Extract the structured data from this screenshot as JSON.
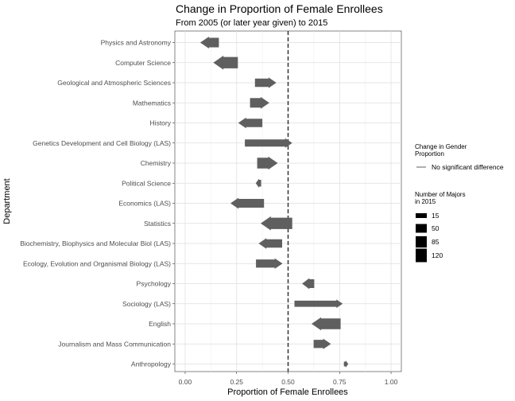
{
  "chart_data": {
    "type": "arrow",
    "title": "Change in Proportion of Female Enrollees",
    "subtitle": "From 2005 (or later year given) to 2015",
    "xlabel": "Proportion of Female Enrollees",
    "ylabel": "Department",
    "xlim": [
      -0.05,
      1.05
    ],
    "xticks": [
      {
        "value": 0,
        "label": "0.00"
      },
      {
        "value": 0.25,
        "label": "0.25"
      },
      {
        "value": 0.5,
        "label": "0.50"
      },
      {
        "value": 0.75,
        "label": "0.75"
      },
      {
        "value": 1,
        "label": "1.00"
      }
    ],
    "reference_line": 0.5,
    "grid": true,
    "mark_color": "#5f5f5f",
    "categories": [
      "Physics and Astronomy",
      "Computer Science",
      "Geological and Atmospheric Sciences",
      "Mathematics",
      "History",
      "Genetics Development and Cell Biology (LAS)",
      "Chemistry",
      "Political Science",
      "Economics (LAS)",
      "Statistics",
      "Biochemistry, Biophysics and Molecular Biol (LAS)",
      "Ecology, Evolution and Organismal Biology (LAS)",
      "Psychology",
      "Sociology (LAS)",
      "English",
      "Journalism and Mass Communication",
      "Anthropology"
    ],
    "series": [
      {
        "category": "Physics and Astronomy",
        "start": 0.164,
        "end": 0.073,
        "majors": 60
      },
      {
        "category": "Computer Science",
        "start": 0.256,
        "end": 0.137,
        "majors": 85
      },
      {
        "category": "Geological and Atmospheric Sciences",
        "start": 0.339,
        "end": 0.443,
        "majors": 45
      },
      {
        "category": "Mathematics",
        "start": 0.315,
        "end": 0.409,
        "majors": 60
      },
      {
        "category": "History",
        "start": 0.375,
        "end": 0.258,
        "majors": 45
      },
      {
        "category": "Genetics Development and Cell Biology (LAS)",
        "start": 0.29,
        "end": 0.52,
        "majors": 35
      },
      {
        "category": "Chemistry",
        "start": 0.35,
        "end": 0.45,
        "majors": 75
      },
      {
        "category": "Political Science",
        "start": 0.369,
        "end": 0.343,
        "majors": 30
      },
      {
        "category": "Economics (LAS)",
        "start": 0.383,
        "end": 0.22,
        "majors": 50
      },
      {
        "category": "Statistics",
        "start": 0.52,
        "end": 0.367,
        "majors": 85
      },
      {
        "category": "Biochemistry, Biophysics and Molecular Biol (LAS)",
        "start": 0.471,
        "end": 0.357,
        "majors": 45
      },
      {
        "category": "Ecology, Evolution and Organismal Biology (LAS)",
        "start": 0.344,
        "end": 0.473,
        "majors": 45
      },
      {
        "category": "Psychology",
        "start": 0.627,
        "end": 0.568,
        "majors": 50
      },
      {
        "category": "Sociology (LAS)",
        "start": 0.531,
        "end": 0.765,
        "majors": 25
      },
      {
        "category": "English",
        "start": 0.755,
        "end": 0.614,
        "majors": 75
      },
      {
        "category": "Journalism and Mass Communication",
        "start": 0.624,
        "end": 0.708,
        "majors": 45
      },
      {
        "category": "Anthropology",
        "start": 0.771,
        "end": 0.792,
        "majors": 15
      }
    ],
    "legend": {
      "placement": "right",
      "change_title": "Change in Gender Proportion",
      "change_items": [
        "No significant difference"
      ],
      "size_title": "Number of Majors in 2015",
      "size_items": [
        15,
        50,
        85,
        120
      ]
    }
  }
}
